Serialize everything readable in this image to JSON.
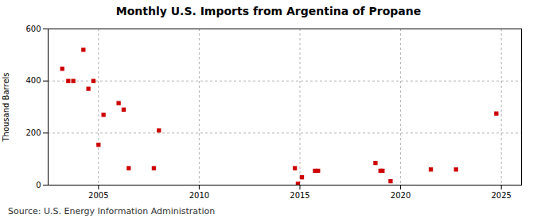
{
  "chart_data": {
    "type": "scatter",
    "title": "Monthly U.S. Imports from Argentina of Propane",
    "ylabel": "Thousand Barrels",
    "source": "Source: U.S. Energy Information Administration",
    "x": [
      2003.2,
      2003.5,
      2003.75,
      2004.25,
      2004.5,
      2004.75,
      2005.0,
      2005.25,
      2006.0,
      2006.25,
      2006.5,
      2007.75,
      2008.0,
      2014.75,
      2014.9,
      2015.1,
      2015.75,
      2015.9,
      2018.75,
      2019.0,
      2019.1,
      2019.5,
      2021.5,
      2022.75,
      2024.75
    ],
    "values": [
      447,
      400,
      400,
      520,
      370,
      400,
      155,
      270,
      315,
      290,
      65,
      65,
      210,
      65,
      5,
      30,
      55,
      55,
      85,
      55,
      55,
      15,
      60,
      60,
      275
    ],
    "color": "#cc0000",
    "marker": "square",
    "xlim": [
      2002.5,
      2026
    ],
    "xticks": [
      2005,
      2010,
      2015,
      2020,
      2025
    ],
    "ylim": [
      0,
      600
    ],
    "yticks": [
      0,
      200,
      400,
      600
    ],
    "grid": true
  }
}
